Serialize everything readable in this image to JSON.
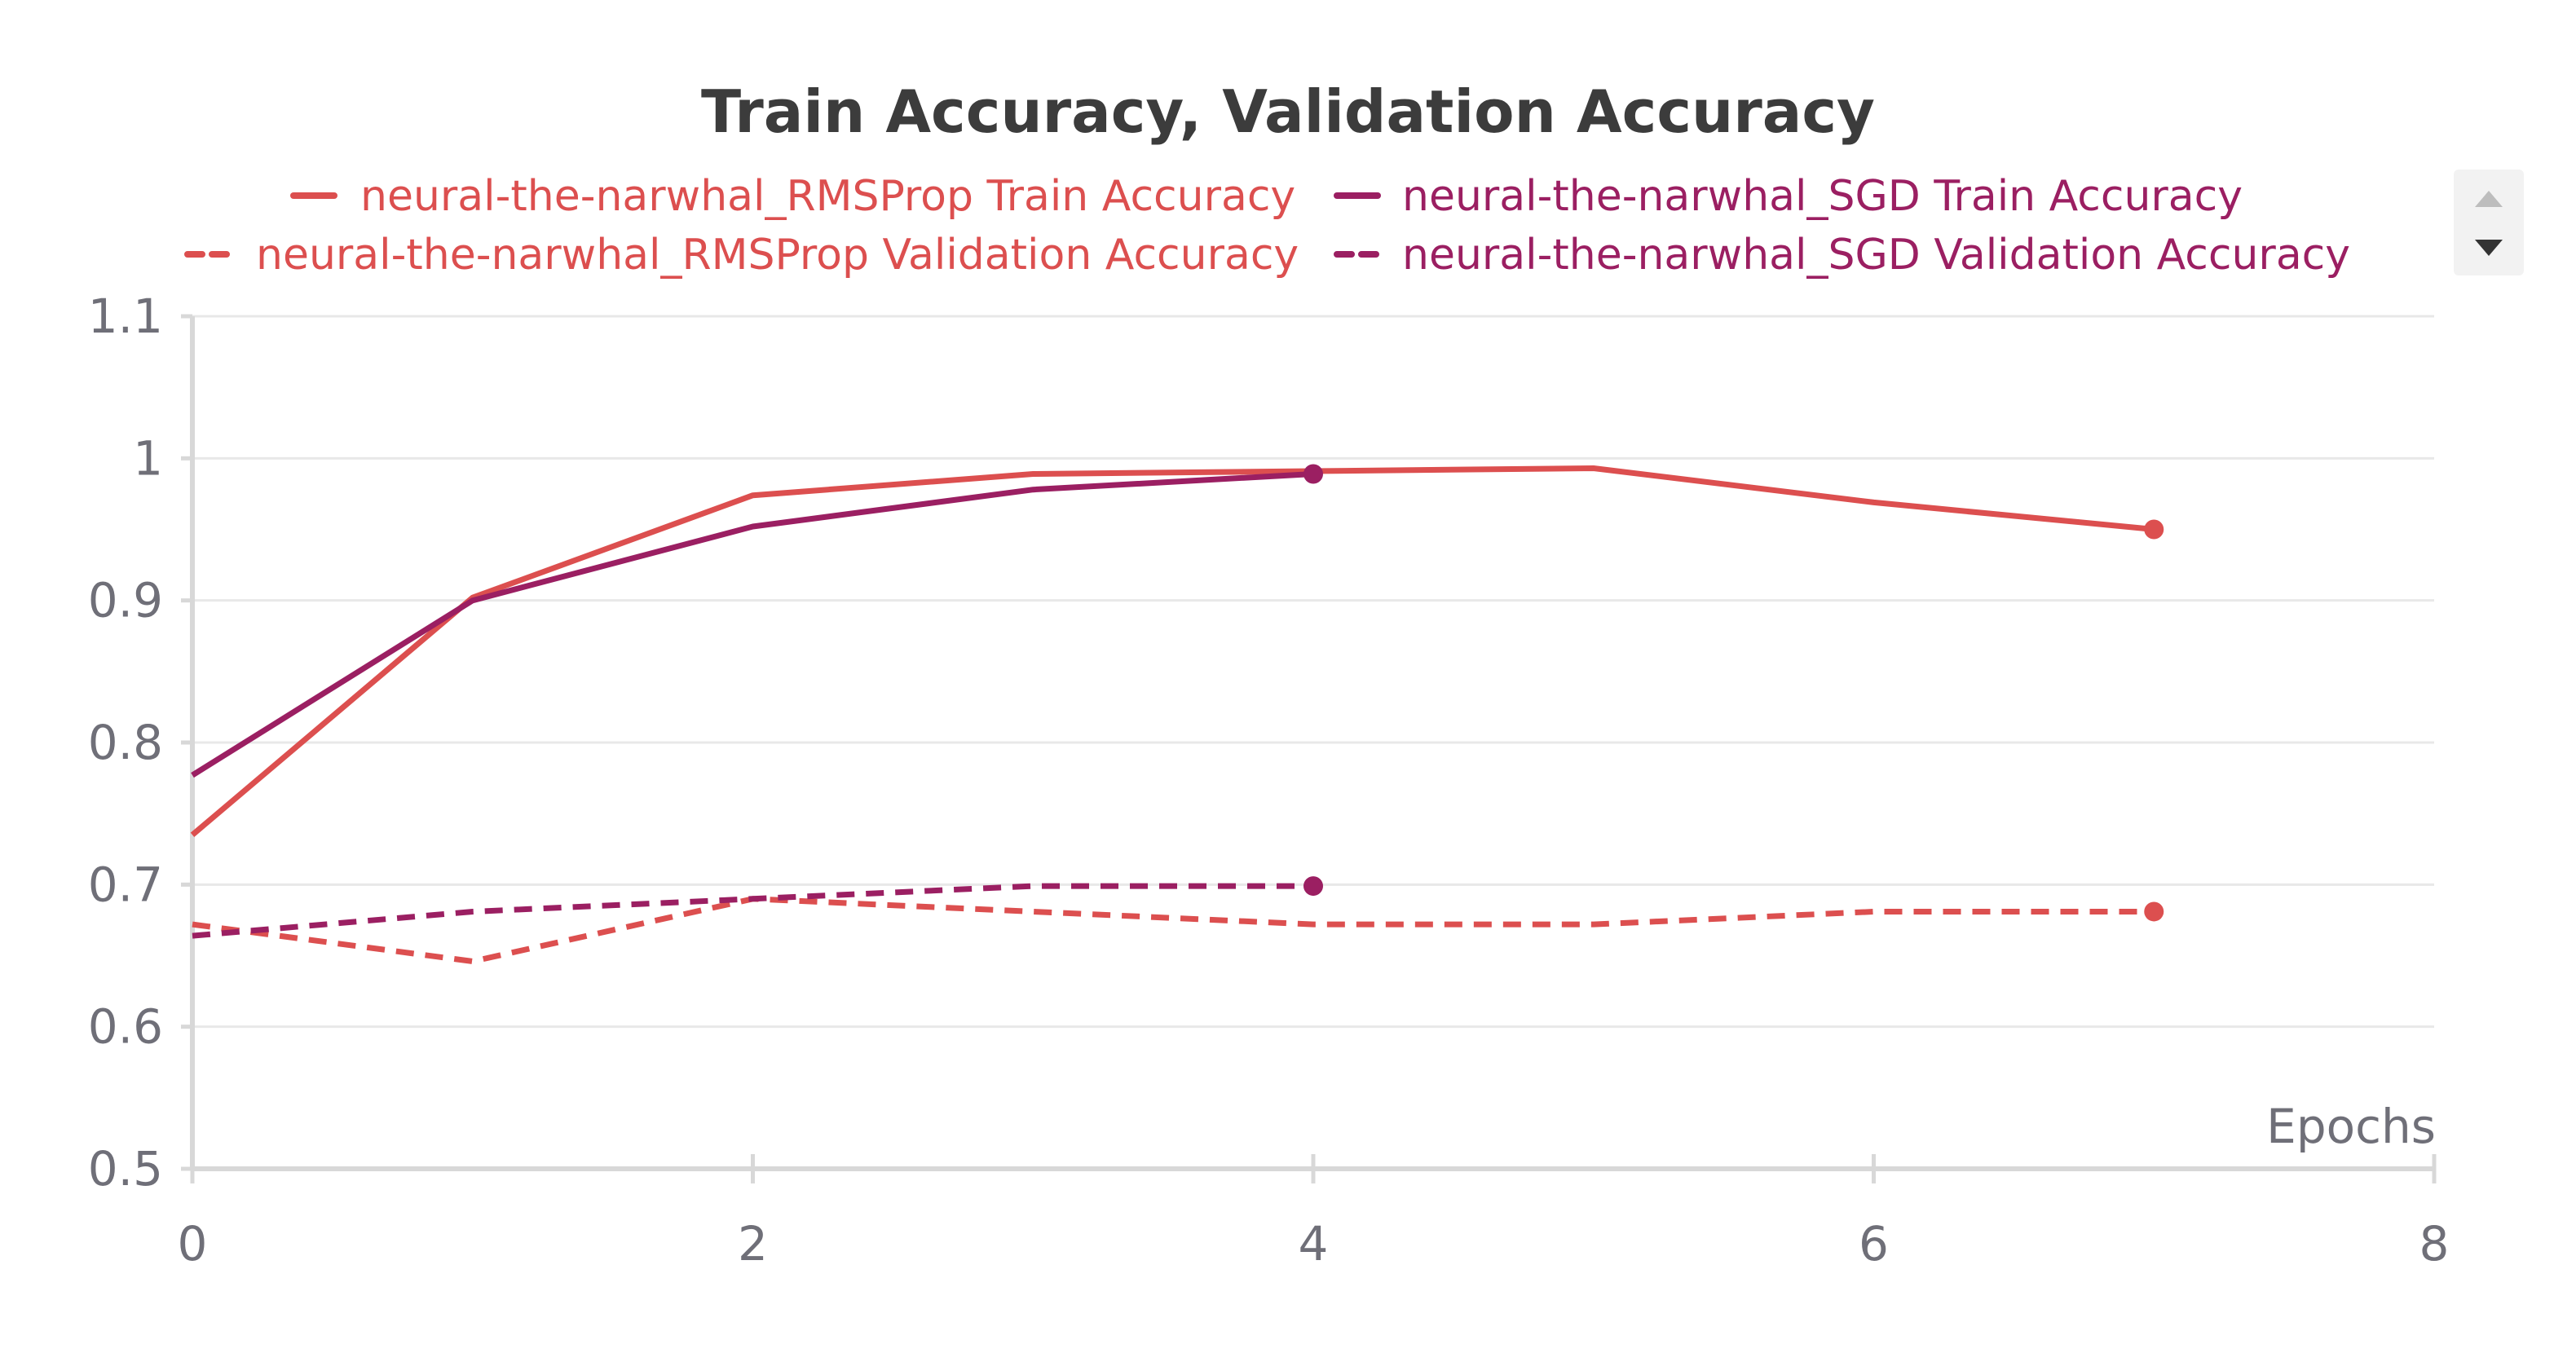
{
  "colors": {
    "rmsprop": "#dc4f4f",
    "sgd": "#9b1f62",
    "grid": "#e8e8e8",
    "axis": "#d8d8d8",
    "tick_text": "#6f6f78",
    "title_text": "#3c3c3c",
    "scroll_bg": "#f2f2f2",
    "scroll_arrow": "#bdbdbd",
    "scroll_arrow_active": "#333333"
  },
  "legend_scroll": {
    "up_icon": "triangle-up-icon",
    "down_icon": "triangle-down-icon"
  },
  "chart_data": {
    "type": "line",
    "title": "Train Accuracy, Validation Accuracy",
    "xlabel": "Epochs",
    "ylabel": "",
    "xlim": [
      0,
      8
    ],
    "ylim": [
      0.5,
      1.1
    ],
    "x_ticks": [
      "0",
      "2",
      "4",
      "6",
      "8"
    ],
    "y_ticks": [
      "0.5",
      "0.6",
      "0.7",
      "0.8",
      "0.9",
      "1",
      "1.1"
    ],
    "grid": true,
    "legend_position": "top",
    "series": [
      {
        "name": "neural-the-narwhal_RMSProp Train Accuracy",
        "color": "#dc4f4f",
        "dash": "solid",
        "x": [
          0,
          1,
          2,
          3,
          4,
          5,
          6,
          7
        ],
        "y": [
          0.735,
          0.902,
          0.974,
          0.989,
          0.991,
          0.993,
          0.969,
          0.95
        ]
      },
      {
        "name": "neural-the-narwhal_SGD Train Accuracy",
        "color": "#9b1f62",
        "dash": "solid",
        "x": [
          0,
          1,
          2,
          3,
          4
        ],
        "y": [
          0.777,
          0.9,
          0.952,
          0.978,
          0.989
        ]
      },
      {
        "name": "neural-the-narwhal_RMSProp Validation Accuracy",
        "color": "#dc4f4f",
        "dash": "dashed",
        "x": [
          0,
          1,
          2,
          3,
          4,
          5,
          6,
          7
        ],
        "y": [
          0.672,
          0.646,
          0.69,
          0.681,
          0.672,
          0.672,
          0.681,
          0.681
        ]
      },
      {
        "name": "neural-the-narwhal_SGD Validation Accuracy",
        "color": "#9b1f62",
        "dash": "dashed",
        "x": [
          0,
          1,
          2,
          3,
          4
        ],
        "y": [
          0.664,
          0.681,
          0.69,
          0.699,
          0.699
        ]
      }
    ]
  }
}
